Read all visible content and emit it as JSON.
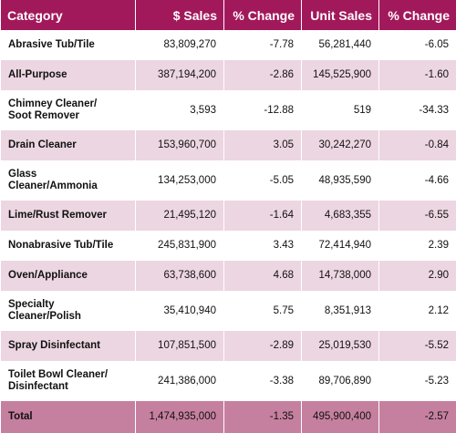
{
  "table": {
    "header": [
      "Category",
      "$ Sales",
      "% Change",
      "Unit Sales",
      "% Change"
    ],
    "rows": [
      [
        "Abrasive Tub/Tile",
        "83,809,270",
        "-7.78",
        "56,281,440",
        "-6.05"
      ],
      [
        "All-Purpose",
        "387,194,200",
        "-2.86",
        "145,525,900",
        "-1.60"
      ],
      [
        "Chimney Cleaner/\nSoot Remover",
        "3,593",
        "-12.88",
        "519",
        "-34.33"
      ],
      [
        "Drain Cleaner",
        "153,960,700",
        "3.05",
        "30,242,270",
        "-0.84"
      ],
      [
        "Glass Cleaner/Ammonia",
        "134,253,000",
        "-5.05",
        "48,935,590",
        "-4.66"
      ],
      [
        "Lime/Rust Remover",
        "21,495,120",
        "-1.64",
        "4,683,355",
        "-6.55"
      ],
      [
        "Nonabrasive Tub/Tile",
        "245,831,900",
        "3.43",
        "72,414,940",
        "2.39"
      ],
      [
        "Oven/Appliance",
        "63,738,600",
        "4.68",
        "14,738,000",
        "2.90"
      ],
      [
        "Specialty Cleaner/Polish",
        "35,410,940",
        "5.75",
        "8,351,913",
        "2.12"
      ],
      [
        "Spray Disinfectant",
        "107,851,500",
        "-2.89",
        "25,019,530",
        "-5.52"
      ],
      [
        "Toilet Bowl Cleaner/\nDisinfectant",
        "241,386,000",
        "-3.38",
        "89,706,890",
        "-5.23"
      ],
      [
        "Total",
        "1,474,935,000",
        "-1.35",
        "495,900,400",
        "-2.57"
      ]
    ]
  }
}
